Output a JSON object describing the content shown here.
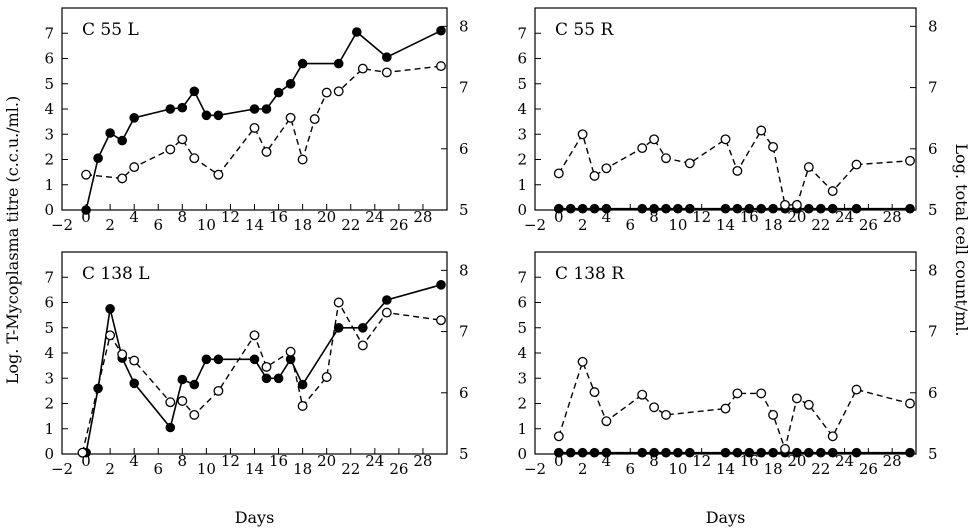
{
  "figure": {
    "ylabel_left": "Log. T-Mycoplasma titre (c.c.u./ml.)",
    "ylabel_right": "Log. total cell count/ml."
  },
  "chart_data": [
    {
      "type": "line",
      "title": "C 55 L",
      "xlabel": "",
      "x_ticks": [
        -2,
        0,
        2,
        4,
        6,
        8,
        10,
        12,
        14,
        16,
        18,
        20,
        22,
        24,
        26,
        28
      ],
      "xlim": [
        -2,
        30
      ],
      "ylim": [
        0,
        8
      ],
      "y_ticks_left": [
        0,
        1,
        2,
        3,
        4,
        5,
        6,
        7
      ],
      "y_ticks_right": [
        5,
        6,
        7,
        8
      ],
      "series": [
        {
          "style": "solid-filled",
          "x": [
            0,
            1,
            2,
            3,
            4,
            7,
            8,
            9,
            10,
            11,
            14,
            15,
            16,
            17,
            18,
            21,
            22.5,
            25,
            29.5
          ],
          "y": [
            0,
            2.05,
            3.05,
            2.75,
            3.65,
            4.0,
            4.05,
            4.7,
            3.75,
            3.75,
            4.0,
            4.0,
            4.65,
            5.0,
            5.8,
            5.8,
            7.05,
            6.05,
            7.1
          ]
        },
        {
          "style": "dashed-open",
          "x": [
            0,
            3,
            4,
            7,
            8,
            9,
            11,
            14,
            15,
            17,
            18,
            19,
            20,
            21,
            23,
            25,
            29.5
          ],
          "y": [
            1.4,
            1.25,
            1.7,
            2.4,
            2.8,
            2.05,
            1.4,
            3.25,
            2.3,
            3.65,
            2.0,
            3.6,
            4.65,
            4.7,
            5.6,
            5.45,
            5.7
          ]
        }
      ]
    },
    {
      "type": "line",
      "title": "C 55 R",
      "xlabel": "",
      "x_ticks": [
        -2,
        0,
        2,
        4,
        6,
        8,
        10,
        12,
        14,
        16,
        18,
        20,
        22,
        24,
        26,
        28
      ],
      "xlim": [
        -2,
        30
      ],
      "ylim": [
        0,
        8
      ],
      "y_ticks_left": [
        0,
        1,
        2,
        3,
        4,
        5,
        6,
        7
      ],
      "y_ticks_right": [
        5,
        6,
        7,
        8
      ],
      "series": [
        {
          "style": "solid-filled",
          "x": [
            0,
            1,
            2,
            3,
            4,
            7,
            8,
            9,
            10,
            11,
            14,
            15,
            16,
            17,
            18,
            19,
            20,
            21,
            22,
            23,
            25,
            29.5
          ],
          "y": [
            0.05,
            0.05,
            0.05,
            0.05,
            0.05,
            0.05,
            0.05,
            0.05,
            0.05,
            0.05,
            0.05,
            0.05,
            0.05,
            0.05,
            0.05,
            0.05,
            0.05,
            0.05,
            0.05,
            0.05,
            0.05,
            0.05
          ]
        },
        {
          "style": "dashed-open",
          "x": [
            0,
            2,
            3,
            4,
            7,
            8,
            9,
            11,
            14,
            15,
            17,
            18,
            19,
            20,
            21,
            23,
            25,
            29.5
          ],
          "y": [
            1.45,
            3.0,
            1.35,
            1.65,
            2.45,
            2.8,
            2.05,
            1.85,
            2.8,
            1.55,
            3.15,
            2.5,
            0.2,
            0.2,
            1.7,
            0.75,
            1.8,
            1.95
          ]
        }
      ]
    },
    {
      "type": "line",
      "title": "C 138 L",
      "xlabel": "Days",
      "x_ticks": [
        -2,
        0,
        2,
        4,
        6,
        8,
        10,
        12,
        14,
        16,
        18,
        20,
        22,
        24,
        26,
        28
      ],
      "xlim": [
        -2,
        30
      ],
      "ylim": [
        0,
        8
      ],
      "y_ticks_left": [
        0,
        1,
        2,
        3,
        4,
        5,
        6,
        7
      ],
      "y_ticks_right": [
        5,
        6,
        7,
        8
      ],
      "series": [
        {
          "style": "solid-filled",
          "x": [
            0,
            1,
            2,
            3,
            4,
            7,
            8,
            9,
            10,
            11,
            14,
            15,
            16,
            17,
            18,
            21,
            23,
            25,
            29.5
          ],
          "y": [
            0.05,
            2.6,
            5.75,
            3.8,
            2.8,
            1.05,
            2.95,
            2.75,
            3.75,
            3.75,
            3.75,
            3.0,
            3.0,
            3.75,
            2.75,
            5.0,
            5.0,
            6.1,
            6.7
          ]
        },
        {
          "style": "dashed-open",
          "x": [
            -0.3,
            2,
            3,
            4,
            7,
            8,
            9,
            11,
            14,
            15,
            17,
            18,
            20,
            21,
            23,
            25,
            29.5
          ],
          "y": [
            0.05,
            4.7,
            3.95,
            3.7,
            2.05,
            2.1,
            1.55,
            2.5,
            4.7,
            3.45,
            4.05,
            1.9,
            3.05,
            6.0,
            4.3,
            5.6,
            5.3
          ]
        }
      ]
    },
    {
      "type": "line",
      "title": "C 138 R",
      "xlabel": "Days",
      "x_ticks": [
        -2,
        0,
        2,
        4,
        6,
        8,
        10,
        12,
        14,
        16,
        18,
        20,
        22,
        24,
        26,
        28
      ],
      "xlim": [
        -2,
        30
      ],
      "ylim": [
        0,
        8
      ],
      "y_ticks_left": [
        0,
        1,
        2,
        3,
        4,
        5,
        6,
        7
      ],
      "y_ticks_right": [
        5,
        6,
        7,
        8
      ],
      "series": [
        {
          "style": "solid-filled",
          "x": [
            0,
            1,
            2,
            3,
            4,
            7,
            8,
            9,
            10,
            11,
            14,
            15,
            16,
            17,
            18,
            19,
            20,
            21,
            22,
            23,
            25,
            29.5
          ],
          "y": [
            0.05,
            0.05,
            0.05,
            0.05,
            0.05,
            0.05,
            0.05,
            0.05,
            0.05,
            0.05,
            0.05,
            0.05,
            0.05,
            0.05,
            0.05,
            0.05,
            0.05,
            0.05,
            0.05,
            0.05,
            0.05,
            0.05
          ]
        },
        {
          "style": "dashed-open",
          "x": [
            0,
            2,
            3,
            4,
            7,
            8,
            9,
            14,
            15,
            17,
            18,
            19,
            20,
            21,
            23,
            25,
            29.5
          ],
          "y": [
            0.7,
            3.65,
            2.45,
            1.3,
            2.35,
            1.85,
            1.55,
            1.8,
            2.4,
            2.4,
            1.55,
            0.2,
            2.2,
            1.95,
            0.7,
            2.55,
            2.0
          ]
        }
      ]
    }
  ]
}
